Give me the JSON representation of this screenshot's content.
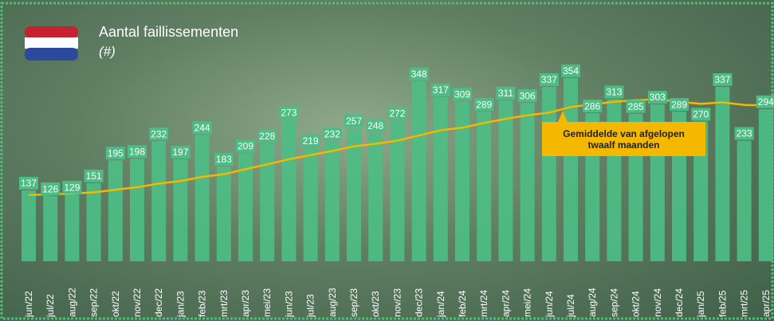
{
  "chart_data": {
    "type": "bar",
    "title": "Aantal faillissementen",
    "subtitle": "(#)",
    "categories": [
      "jun/22",
      "jul/22",
      "aug/22",
      "sep/22",
      "okt/22",
      "nov/22",
      "dec/22",
      "jan/23",
      "feb/23",
      "mrt/23",
      "apr/23",
      "mei/23",
      "jun/23",
      "jul/23",
      "aug/23",
      "sep/23",
      "okt/23",
      "nov/23",
      "dec/23",
      "jan/24",
      "feb/24",
      "mrt/24",
      "apr/24",
      "mei/24",
      "jun/24",
      "jul/24",
      "aug/24",
      "sep/24",
      "okt/24",
      "nov/24",
      "dec/24",
      "jan/25",
      "feb/25",
      "mrt/25",
      "apr/25"
    ],
    "values": [
      137,
      126,
      129,
      151,
      195,
      198,
      232,
      197,
      244,
      183,
      209,
      228,
      273,
      219,
      232,
      257,
      248,
      272,
      348,
      317,
      309,
      289,
      311,
      306,
      337,
      354,
      286,
      313,
      285,
      303,
      289,
      270,
      337,
      233,
      294
    ],
    "color": "#4dbd85",
    "average": {
      "name": "Gemiddelde van afgelopen twaalf maanden",
      "color": "#f5b800",
      "values": [
        128,
        129,
        131,
        133,
        138,
        143,
        150,
        155,
        163,
        168,
        178,
        187,
        197,
        205,
        213,
        222,
        227,
        233,
        243,
        253,
        258,
        267,
        275,
        282,
        287,
        298,
        303,
        308,
        311,
        313,
        308,
        304,
        307,
        302,
        301
      ]
    }
  }
}
